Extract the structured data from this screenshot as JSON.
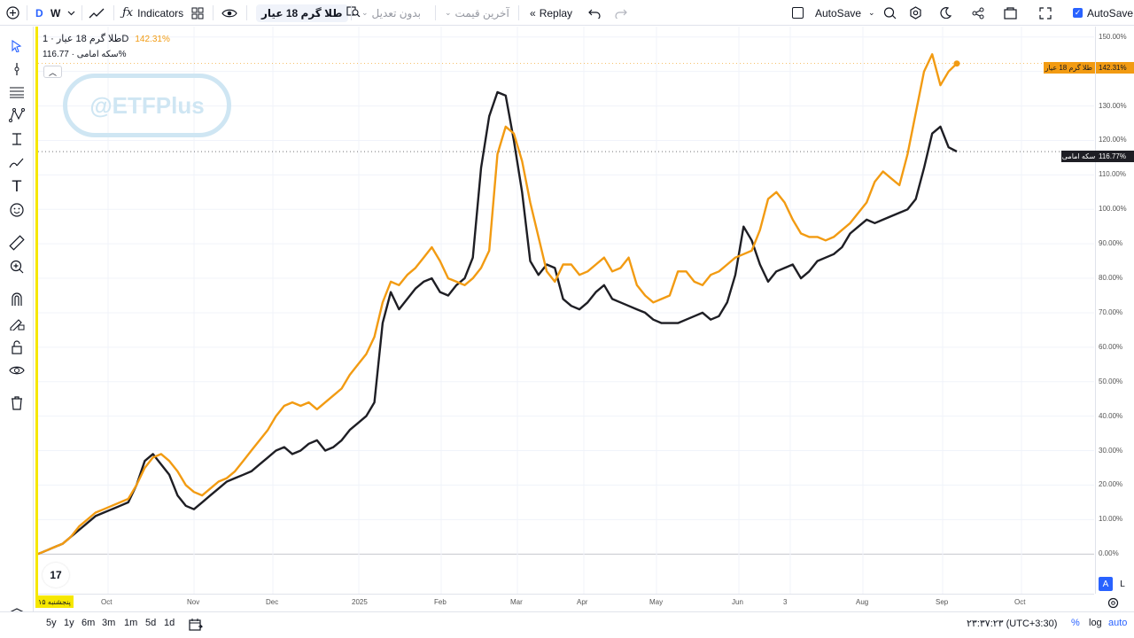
{
  "toolbar": {
    "interval_d": "D",
    "interval_w": "W",
    "indicators_label": "Indicators",
    "symbol": "طلا گرم 18 عیار",
    "adjustment": "بدون تعدیل",
    "price_type": "آخرین قیمت",
    "replay_label": "Replay",
    "autosave_label": "AutoSave",
    "autosave_checkbox_label": "AutoSave"
  },
  "legend": {
    "main_symbol": "طلا گرم 18 عیار",
    "main_interval": "1D",
    "main_value": "142.31%",
    "compare_symbol": "سکه امامی",
    "compare_value": "116.77%"
  },
  "watermark": "@ETFPlus",
  "tv_logo": "17",
  "price_axis": {
    "labels": [
      "150.00%",
      "140.00%",
      "130.00%",
      "120.00%",
      "110.00%",
      "100.00%",
      "90.00%",
      "80.00%",
      "70.00%",
      "60.00%",
      "50.00%",
      "40.00%",
      "30.00%",
      "20.00%",
      "10.00%",
      "0.00%"
    ],
    "main_tag_value": "142.31%",
    "main_tag_name": "طلا گرم 18 عیار",
    "compare_tag_value": "116.77%",
    "compare_tag_name": "سکه امامی"
  },
  "time_axis": {
    "start_badge": "پنجشنبه ۱۵",
    "labels": [
      "Oct",
      "Nov",
      "Dec",
      "2025",
      "Feb",
      "Mar",
      "Apr",
      "May",
      "Jun",
      "3",
      "Aug",
      "Sep",
      "Oct"
    ]
  },
  "scale_buttons": {
    "auto_mode": "A",
    "log_mode": "L"
  },
  "bottom": {
    "ranges": [
      "5y",
      "1y",
      "6m",
      "3m",
      "1m",
      "5d",
      "1d"
    ],
    "clock": "۲۳:۳۷:۲۳ (UTC+3:30)",
    "percent": "%",
    "log": "log",
    "auto": "auto"
  },
  "colors": {
    "gold_series": "#f29b12",
    "coin_series": "#1e1e24",
    "accent": "#2962ff",
    "grid": "#f0f3fa",
    "highlight": "#f6e700"
  },
  "chart_data": {
    "type": "line",
    "ylabel": "",
    "xlabel": "",
    "y_unit": "%",
    "ylim": [
      -2,
      152
    ],
    "x_ticks": [
      "Oct",
      "Nov",
      "Dec",
      "2025",
      "Feb",
      "Mar",
      "Apr",
      "May",
      "Jun",
      "3",
      "Aug",
      "Sep",
      "Oct"
    ],
    "series": [
      {
        "name": "طلا گرم 18 عیار",
        "color": "#f29b12",
        "values": [
          0,
          1,
          2,
          3,
          5,
          8,
          10,
          12,
          13,
          14,
          15,
          16,
          20,
          25,
          28,
          29,
          27,
          24,
          20,
          18,
          17,
          19,
          21,
          22,
          24,
          27,
          30,
          33,
          36,
          40,
          43,
          44,
          43,
          44,
          42,
          44,
          46,
          48,
          52,
          55,
          58,
          63,
          73,
          79,
          78,
          81,
          83,
          86,
          89,
          85,
          80,
          79,
          78,
          80,
          83,
          88,
          116,
          124,
          122,
          114,
          102,
          92,
          82,
          79,
          84,
          84,
          81,
          82,
          84,
          86,
          82,
          83,
          86,
          78,
          75,
          73,
          74,
          75,
          82,
          82,
          79,
          78,
          81,
          82,
          84,
          86,
          87,
          88,
          94,
          103,
          105,
          102,
          97,
          93,
          92,
          92,
          91,
          92,
          94,
          96,
          99,
          102,
          108,
          111,
          109,
          107,
          116,
          128,
          140,
          145,
          136,
          140,
          142.31
        ],
        "end_value": 142.31
      },
      {
        "name": "سکه امامی",
        "color": "#1e1e24",
        "values": [
          0,
          1,
          2,
          3,
          5,
          7,
          9,
          11,
          12,
          13,
          14,
          15,
          20,
          27,
          29,
          26,
          23,
          17,
          14,
          13,
          15,
          17,
          19,
          21,
          22,
          23,
          24,
          26,
          28,
          30,
          31,
          29,
          30,
          32,
          33,
          30,
          31,
          33,
          36,
          38,
          40,
          44,
          67,
          76,
          71,
          74,
          77,
          79,
          80,
          76,
          75,
          78,
          80,
          86,
          112,
          127,
          134,
          133,
          120,
          105,
          85,
          81,
          84,
          83,
          74,
          72,
          71,
          73,
          76,
          78,
          74,
          73,
          72,
          71,
          70,
          68,
          67,
          67,
          67,
          68,
          69,
          70,
          68,
          69,
          73,
          81,
          95,
          91,
          84,
          79,
          82,
          83,
          84,
          80,
          82,
          85,
          86,
          87,
          89,
          93,
          95,
          97,
          96,
          97,
          98,
          99,
          100,
          103,
          112,
          122,
          124,
          118,
          116.77
        ],
        "end_value": 116.77
      }
    ]
  }
}
